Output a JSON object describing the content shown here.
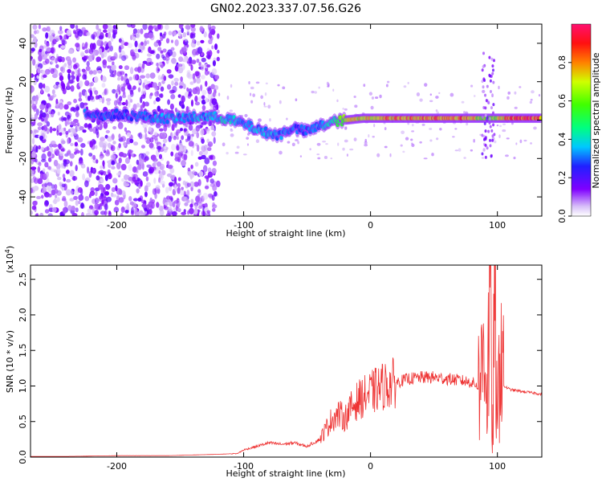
{
  "title": "GN02.2023.337.07.56.G26",
  "colors": {
    "line": "#ee3333",
    "heat_low": "#c8a8f0",
    "heat_mid": "#6a00e8",
    "heat_high": "#ff2a20"
  },
  "chart_data": [
    {
      "type": "heatmap",
      "xlabel": "Height of straight line (km)",
      "ylabel": "Frequency (Hz)",
      "xlim": [
        -268,
        135
      ],
      "ylim": [
        -50,
        50
      ],
      "xticks": [
        -200,
        -100,
        0,
        100
      ],
      "yticks": [
        -40,
        -20,
        0,
        20,
        40
      ],
      "colorbar": {
        "label": "Normalized spectral amplitude",
        "range": [
          0.0,
          1.0
        ],
        "ticks": [
          0.0,
          0.2,
          0.4,
          0.6,
          0.8
        ],
        "tick_labels": [
          "0.0",
          "0.2",
          "0.4",
          "0.6",
          "0.8"
        ]
      },
      "ridge": [
        {
          "x": -225,
          "y": 4,
          "amp": 0.3
        },
        {
          "x": -210,
          "y": 2,
          "amp": 0.3
        },
        {
          "x": -200,
          "y": 3,
          "amp": 0.3
        },
        {
          "x": -180,
          "y": 2,
          "amp": 0.3
        },
        {
          "x": -165,
          "y": 1,
          "amp": 0.35
        },
        {
          "x": -150,
          "y": 1,
          "amp": 0.35
        },
        {
          "x": -130,
          "y": 2,
          "amp": 0.35
        },
        {
          "x": -115,
          "y": 1,
          "amp": 0.4
        },
        {
          "x": -100,
          "y": -2,
          "amp": 0.35
        },
        {
          "x": -85,
          "y": -6,
          "amp": 0.35
        },
        {
          "x": -72,
          "y": -8,
          "amp": 0.35
        },
        {
          "x": -62,
          "y": -4,
          "amp": 0.3
        },
        {
          "x": -50,
          "y": -6,
          "amp": 0.3
        },
        {
          "x": -40,
          "y": -3,
          "amp": 0.35
        },
        {
          "x": -30,
          "y": -1,
          "amp": 0.45
        },
        {
          "x": -20,
          "y": 0,
          "amp": 0.7
        },
        {
          "x": -5,
          "y": 1,
          "amp": 0.75
        },
        {
          "x": 10,
          "y": 1,
          "amp": 0.8
        },
        {
          "x": 30,
          "y": 1,
          "amp": 0.8
        },
        {
          "x": 50,
          "y": 1,
          "amp": 0.85
        },
        {
          "x": 70,
          "y": 1,
          "amp": 0.85
        },
        {
          "x": 85,
          "y": 1,
          "amp": 0.7
        },
        {
          "x": 95,
          "y": 1,
          "amp": 0.6
        },
        {
          "x": 110,
          "y": 1,
          "amp": 0.85
        },
        {
          "x": 125,
          "y": 1,
          "amp": 0.9
        },
        {
          "x": 135,
          "y": 1,
          "amp": 0.9
        }
      ]
    },
    {
      "type": "line",
      "xlabel": "Height of straight line (km)",
      "ylabel": "SNR (10 * v/v)",
      "y_multiplier": "(x10",
      "y_multiplier_exp": "4",
      "xlim": [
        -268,
        135
      ],
      "ylim": [
        0,
        2.7
      ],
      "xticks": [
        -200,
        -100,
        0,
        100
      ],
      "yticks": [
        0.0,
        0.5,
        1.0,
        1.5,
        2.0,
        2.5
      ],
      "ytick_labels": [
        "0.0",
        "0.5",
        "1.0",
        "1.5",
        "2.0",
        "2.5"
      ],
      "series": [
        {
          "x": [
            -268,
            -240,
            -200,
            -160,
            -120,
            -105,
            -100,
            -90,
            -80,
            -70,
            -60,
            -50,
            -40,
            -35,
            -30,
            -25,
            -20,
            -15,
            -10,
            -5,
            0,
            10,
            20,
            30,
            40,
            50,
            60,
            70,
            80,
            85,
            88,
            90,
            92,
            94,
            96,
            98,
            100,
            102,
            105,
            110,
            120,
            130,
            135
          ],
          "y": [
            0.01,
            0.01,
            0.02,
            0.02,
            0.04,
            0.05,
            0.1,
            0.15,
            0.2,
            0.18,
            0.2,
            0.15,
            0.25,
            0.4,
            0.55,
            0.6,
            0.55,
            0.7,
            0.8,
            0.85,
            0.9,
            1.0,
            1.05,
            1.1,
            1.12,
            1.12,
            1.1,
            1.08,
            1.05,
            1.0,
            1.2,
            2.0,
            0.6,
            2.7,
            0.1,
            2.3,
            0.2,
            1.8,
            1.0,
            0.95,
            0.92,
            0.9,
            0.88
          ]
        }
      ]
    }
  ]
}
